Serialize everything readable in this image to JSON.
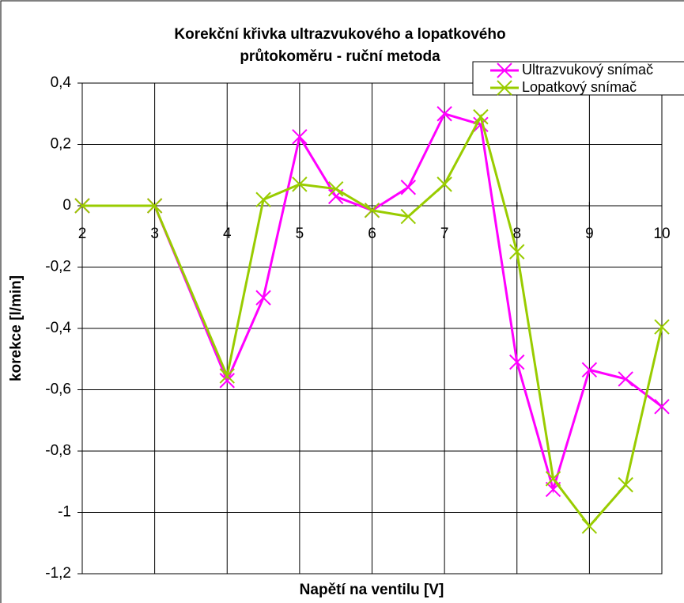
{
  "chart_data": {
    "type": "line",
    "title": "Korekční křivka ultrazvukového a lopatkového průtokoměru - ruční metoda",
    "xlabel": "Napětí na ventilu [V]",
    "ylabel": "korekce [l/min]",
    "x": [
      2,
      3,
      4,
      4.5,
      5,
      5.5,
      6,
      6.5,
      7,
      7.5,
      8,
      8.5,
      9,
      9.5,
      10
    ],
    "series": [
      {
        "name": "Ultrazvukový snímač",
        "color": "#ff00ff",
        "values": [
          0,
          0,
          -0.57,
          -0.3,
          0.225,
          0.03,
          -0.015,
          0.06,
          0.3,
          0.265,
          -0.51,
          -0.925,
          -0.535,
          -0.565,
          -0.655
        ]
      },
      {
        "name": "Lopatkový snímač",
        "color": "#99cc00",
        "values": [
          0,
          0,
          -0.555,
          0.02,
          0.07,
          0.055,
          -0.015,
          -0.035,
          0.07,
          0.29,
          -0.15,
          -0.89,
          -1.045,
          -0.91,
          -0.395
        ]
      }
    ],
    "xlim": [
      2,
      10
    ],
    "xticks": [
      2,
      3,
      4,
      5,
      6,
      7,
      8,
      9,
      10
    ],
    "ylim": [
      -1.2,
      0.4
    ],
    "yticks": [
      {
        "value": -1.2,
        "label": "-1,2"
      },
      -1,
      {
        "value": -0.8,
        "label": "-0,8"
      },
      {
        "value": -0.6,
        "label": "-0,6"
      },
      {
        "value": -0.4,
        "label": "-0,4"
      },
      {
        "value": -0.2,
        "label": "-0,2"
      },
      0,
      {
        "value": 0.2,
        "label": "0,2"
      },
      {
        "value": 0.4,
        "label": "0,4"
      }
    ],
    "grid": true,
    "legend": "top-right"
  }
}
